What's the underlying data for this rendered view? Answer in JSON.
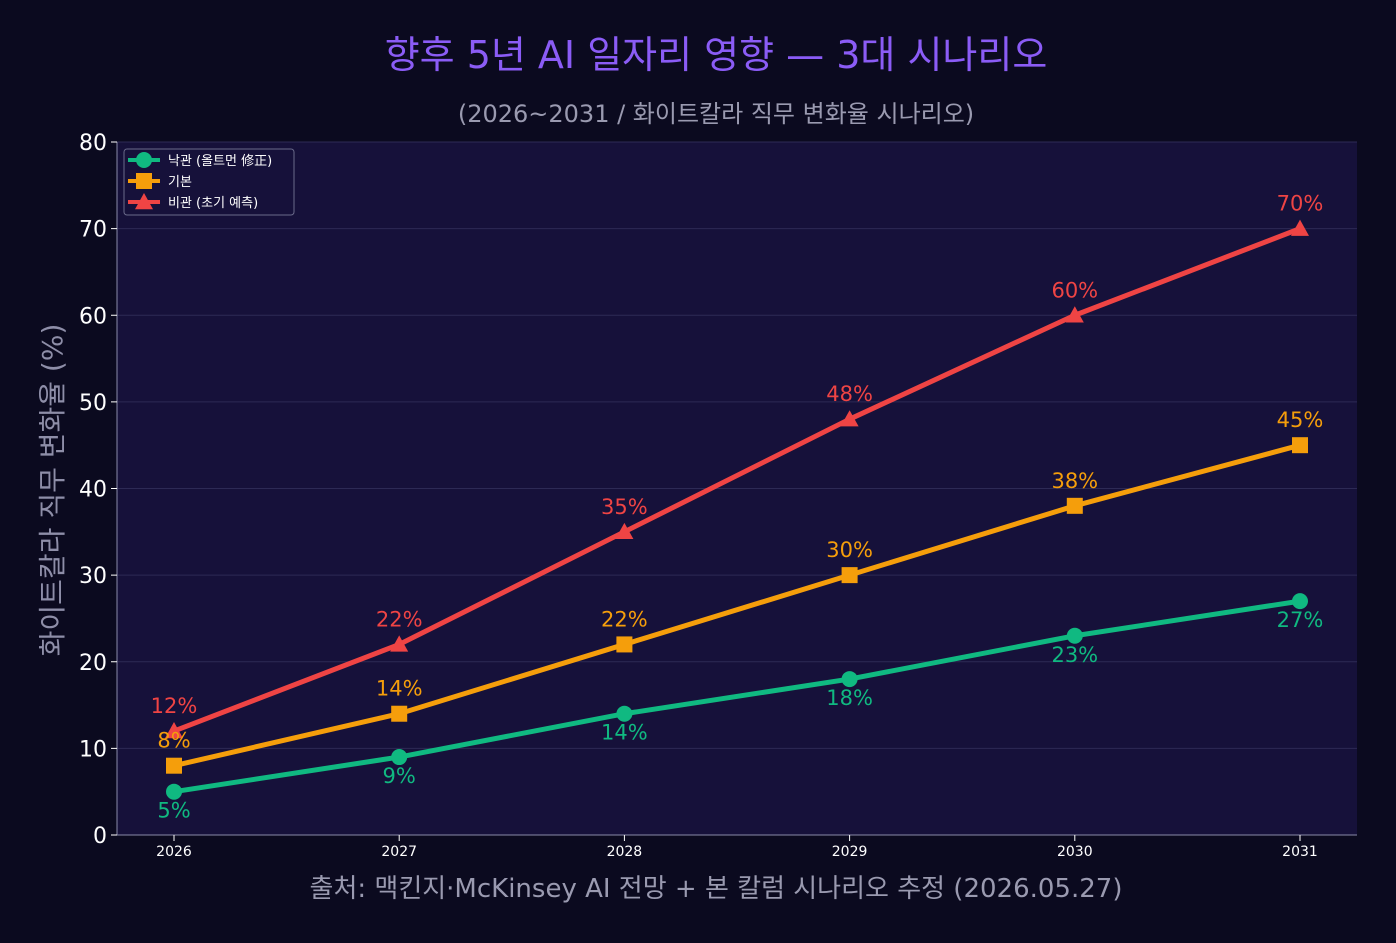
{
  "chart_data": {
    "type": "line",
    "title": "향후 5년 AI 일자리 영향 — 3대 시나리오",
    "subtitle": "(2026~2031 / 화이트칼라 직무 변화율 시나리오)",
    "xlabel": "",
    "ylabel": "화이트칼라 직무 변화율 (%)",
    "source": "출처: 맥킨지·McKinsey AI 전망 + 본 칼럼 시나리오 추정 (2026.05.27)",
    "x": [
      "2026",
      "2027",
      "2028",
      "2029",
      "2030",
      "2031"
    ],
    "ylim": [
      0,
      80
    ],
    "yticks": [
      "0",
      "10",
      "20",
      "30",
      "40",
      "50",
      "60",
      "70",
      "80"
    ],
    "grid": "horizontal",
    "legend_position": "top-left",
    "series": [
      {
        "name": "낙관 (올트먼 修正)",
        "color": "#10b981",
        "marker": "circle",
        "values": [
          5,
          9,
          14,
          18,
          23,
          27
        ],
        "labels": [
          "5%",
          "9%",
          "14%",
          "18%",
          "23%",
          "27%"
        ],
        "label_position": "below"
      },
      {
        "name": "기본",
        "color": "#f59e0b",
        "marker": "square",
        "values": [
          8,
          14,
          22,
          30,
          38,
          45
        ],
        "labels": [
          "8%",
          "14%",
          "22%",
          "30%",
          "38%",
          "45%"
        ],
        "label_position": "above"
      },
      {
        "name": "비관 (초기 예측)",
        "color": "#ef4444",
        "marker": "triangle",
        "values": [
          12,
          22,
          35,
          48,
          60,
          70
        ],
        "labels": [
          "12%",
          "22%",
          "35%",
          "48%",
          "60%",
          "70%"
        ],
        "label_position": "above"
      }
    ],
    "colors": {
      "background": "#0b0a1f",
      "plot_background": "#16113a",
      "title": "#8b5cf6",
      "grid": "#2d2a55"
    }
  }
}
